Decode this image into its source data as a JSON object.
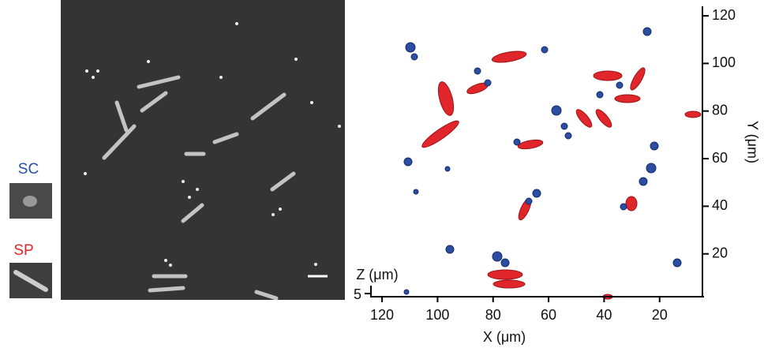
{
  "insets": {
    "sc_label": "SC",
    "sp_label": "SP"
  },
  "plot": {
    "x_label": "X (μm)",
    "y_label": "Y (μm)",
    "z_label": "Z (μm)",
    "xlim": [
      124,
      4
    ],
    "xticks": [
      120,
      100,
      80,
      60,
      40,
      20
    ],
    "ylim": [
      2,
      124
    ],
    "yticks": [
      20,
      40,
      60,
      80,
      100,
      120
    ],
    "zticks": [
      5
    ]
  }
}
